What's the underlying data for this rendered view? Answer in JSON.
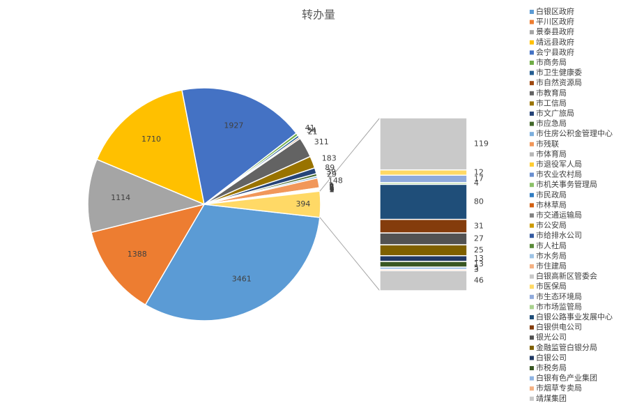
{
  "chart_data": {
    "type": "bar-of-pie",
    "title": "转办量",
    "categories": [
      "白银区政府",
      "平川区政府",
      "景泰县政府",
      "靖远县政府",
      "会宁县政府",
      "市商务局",
      "市卫生健康委",
      "市自然资源局",
      "市教育局",
      "市工信局",
      "市文广旅局",
      "市应急局",
      "市住房公积金管理中心",
      "市残联",
      "市体育局",
      "市退役军人局",
      "市农业农村局",
      "市机关事务管理局",
      "市民政局",
      "市林草局",
      "市交通运输局",
      "市公安局",
      "市给排水公司",
      "市人社局",
      "市水务局",
      "市住建局",
      "白银高新区管委会",
      "市医保局",
      "市生态环境局",
      "市市场监管局",
      "白银公路事业发展中心",
      "白银供电公司",
      "银光公司",
      "金融监管白银分局",
      "白银公司",
      "市税务局",
      "白银有色产业集团",
      "市烟草专卖局",
      "靖煤集团"
    ],
    "values": [
      3461,
      1388,
      1114,
      1710,
      1927,
      41,
      34,
      21,
      311,
      183,
      89,
      39,
      29,
      148,
      9,
      7,
      6,
      5,
      5,
      4,
      4,
      3,
      3,
      2,
      2,
      2,
      119,
      12,
      17,
      4,
      80,
      31,
      27,
      25,
      13,
      13,
      5,
      3,
      46
    ],
    "colors": [
      "#5b9bd5",
      "#ed7d31",
      "#a5a5a5",
      "#ffc000",
      "#4472c4",
      "#70ad47",
      "#255e91",
      "#9e480e",
      "#636363",
      "#997300",
      "#264478",
      "#43682b",
      "#7cafdd",
      "#f1975a",
      "#b7b7b7",
      "#ffcd33",
      "#698ed0",
      "#8cc168",
      "#327dc2",
      "#d26012",
      "#848484",
      "#cc9a00",
      "#335aa1",
      "#5a8a39",
      "#9dc3e6",
      "#f4b183",
      "#c9c9c9",
      "#ffd966",
      "#8faadc",
      "#a9d18e",
      "#1f4e79",
      "#843c0c",
      "#525252",
      "#7f6000",
      "#203864",
      "#385723",
      "#8eb4e3",
      "#f4b183",
      "#c9c9c9"
    ],
    "split": 26,
    "other_value": 394,
    "other_color": "#ffd966"
  }
}
